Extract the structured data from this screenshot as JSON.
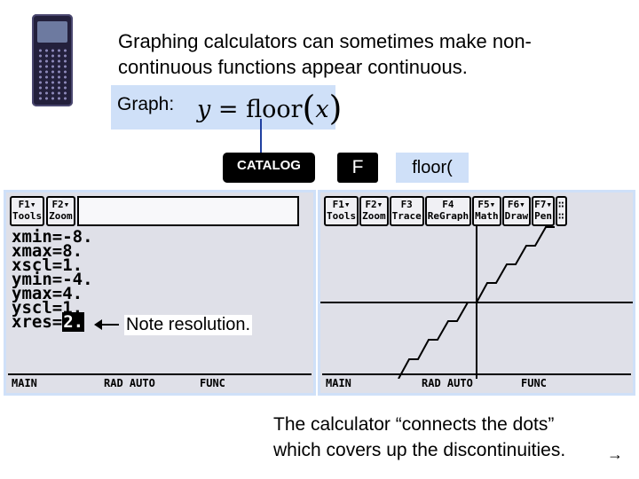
{
  "slide": {
    "intro_line1": "Graphing calculators can sometimes make non-",
    "intro_line2": "continuous functions appear continuous.",
    "graph_label": "Graph:",
    "formula": {
      "lhs": "y",
      "eq": "=",
      "fn": "floor",
      "open": "(",
      "arg": "x",
      "close": ")"
    },
    "keys": {
      "catalog": "CATALOG",
      "f": "F",
      "floor": "floor("
    },
    "note": "Note resolution.",
    "caption_line1": "The calculator “connects the dots”",
    "caption_line2": "which covers up the discontinuities.",
    "next_icon": "→"
  },
  "window_screen": {
    "toolbar": [
      {
        "key": "F1▾",
        "label": "Tools"
      },
      {
        "key": "F2▾",
        "label": "Zoom"
      }
    ],
    "variables": [
      {
        "text": "xmin=-8."
      },
      {
        "text": "xmax=8."
      },
      {
        "text": "xscl=1."
      },
      {
        "text": "ymin=-4."
      },
      {
        "text": "ymax=4."
      },
      {
        "text": "yscl=1."
      }
    ],
    "xres_prefix": "xres=",
    "xres_value": "2.",
    "status": {
      "mode": "MAIN",
      "angle": "RAD AUTO",
      "graph": "FUNC"
    }
  },
  "graph_screen": {
    "toolbar": [
      {
        "key": "F1▾",
        "label": "Tools"
      },
      {
        "key": "F2▾",
        "label": "Zoom"
      },
      {
        "key": "F3",
        "label": "Trace"
      },
      {
        "key": "F4",
        "label": "ReGraph"
      },
      {
        "key": "F5▾",
        "label": "Math"
      },
      {
        "key": "F6▾",
        "label": "Draw"
      },
      {
        "key": "F7▾",
        "label": "Pen"
      },
      {
        "key": "∷",
        "label": "∷"
      }
    ],
    "status": {
      "mode": "MAIN",
      "angle": "RAD AUTO",
      "graph": "FUNC"
    }
  },
  "colors": {
    "highlight": "#cfe0f8",
    "screen": "#dfe0e8",
    "key": "#000000",
    "connector": "#2040a0"
  }
}
